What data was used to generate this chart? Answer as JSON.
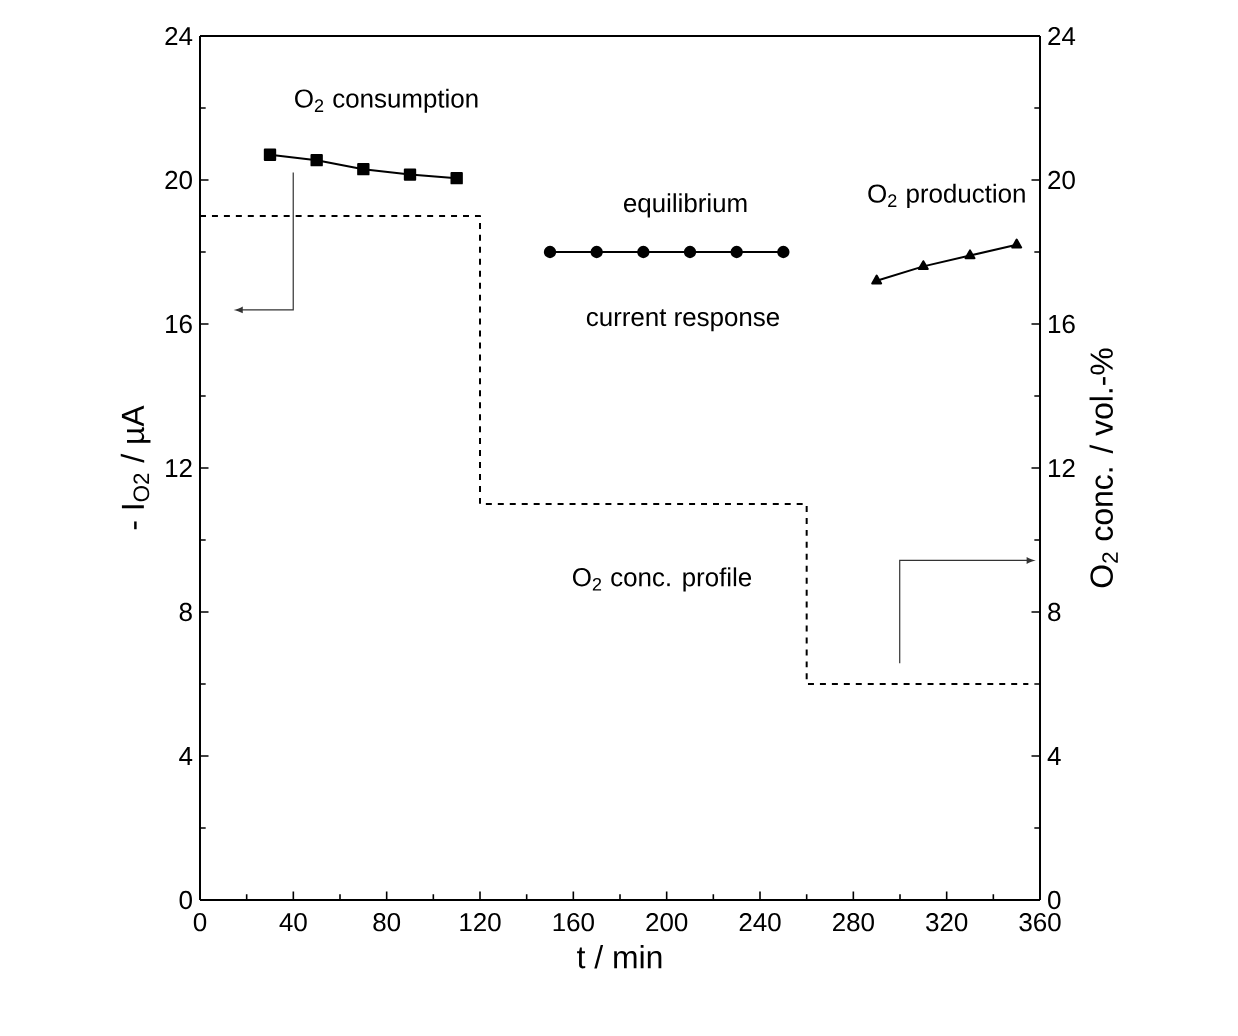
{
  "chart_data": {
    "type": "line",
    "xlabel": "t / min",
    "ylabel": "- I$_{O2}$ / µA",
    "y2label": "O$_{2}$ conc. / vol.-%",
    "xlim": [
      0,
      360
    ],
    "xticks": [
      0,
      40,
      80,
      120,
      160,
      200,
      240,
      280,
      320,
      360
    ],
    "ylim": [
      0,
      24
    ],
    "yticks": [
      0,
      4,
      8,
      12,
      16,
      20,
      24
    ],
    "y2lim": [
      0,
      24
    ],
    "y2ticks": [
      0,
      4,
      8,
      12,
      16,
      20,
      24
    ],
    "series": [
      {
        "color": "#000000",
        "marker": "square",
        "x": [
          30,
          50,
          70,
          90,
          110
        ],
        "values": [
          20.7,
          20.55,
          20.3,
          20.15,
          20.05
        ]
      },
      {
        "color": "#000000",
        "marker": "circle",
        "x": [
          150,
          170,
          190,
          210,
          230,
          250
        ],
        "values": [
          18.0,
          18.0,
          18.0,
          18.0,
          18.0,
          18.0
        ]
      },
      {
        "color": "#000000",
        "marker": "triangle",
        "x": [
          290,
          310,
          330,
          350
        ],
        "values": [
          17.2,
          17.6,
          17.9,
          18.2
        ]
      },
      {
        "type": "step",
        "axis": "y2",
        "color": "#000000",
        "line_style": "dashed",
        "marker": "none",
        "x": [
          0,
          120,
          260,
          355
        ],
        "values": [
          19,
          11,
          6,
          6
        ]
      }
    ],
    "annotations": [
      "O$_{2}$ consumption",
      "equilibrium",
      "current response",
      "O$_{2}$ production",
      "O$_{2}$ conc. profile"
    ]
  }
}
